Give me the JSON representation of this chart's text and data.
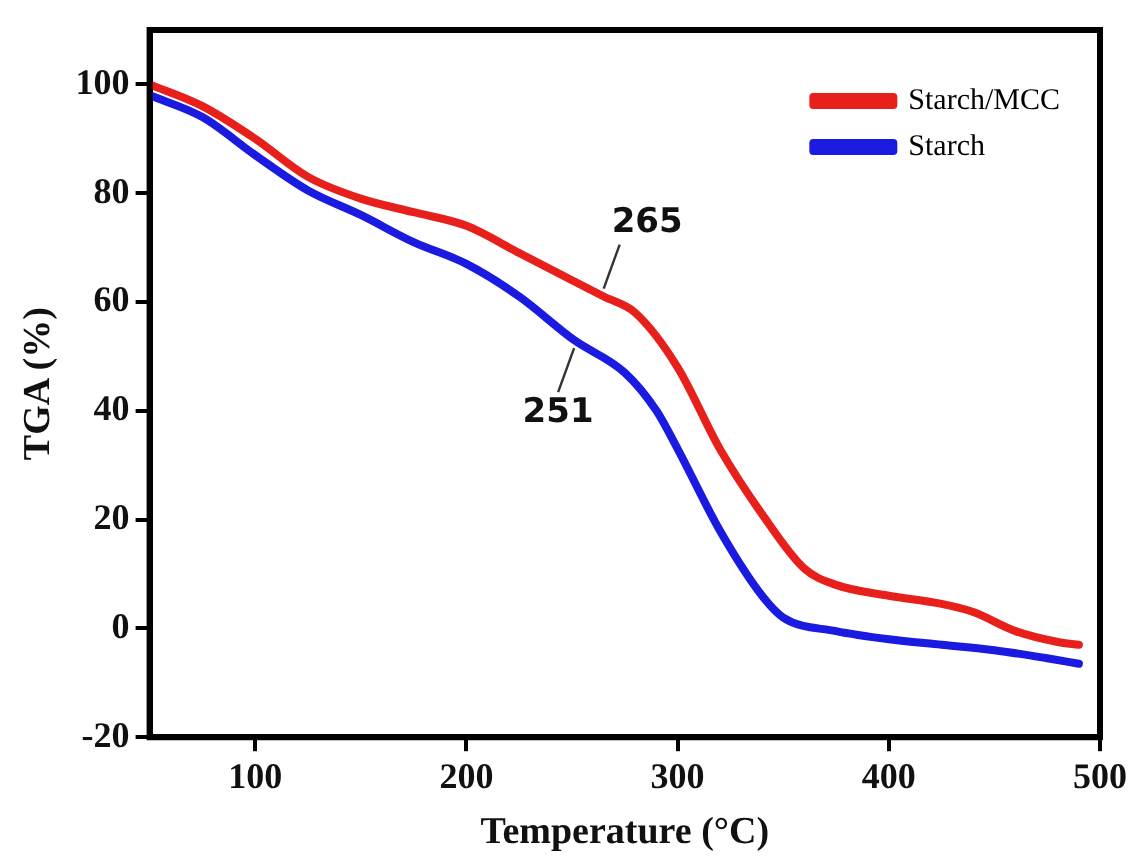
{
  "chart_data": {
    "type": "line",
    "xlabel": "Temperature (°C)",
    "ylabel": "TGA (%)",
    "xlim": [
      50,
      500
    ],
    "xticks": [
      100,
      200,
      300,
      400,
      500
    ],
    "ylim": [
      -20,
      110
    ],
    "yticks": [
      -20,
      0,
      20,
      40,
      60,
      80,
      100
    ],
    "grid": false,
    "legend": "top right",
    "marker": "none",
    "line_style": "solid",
    "annotations": [
      {
        "text": "265",
        "x": 265,
        "y": 61
      },
      {
        "text": "251",
        "x": 251,
        "y": 53
      }
    ],
    "series": [
      {
        "name": "Starch/MCC",
        "color": "#e8201c",
        "x": [
          50,
          75,
          100,
          125,
          150,
          175,
          200,
          225,
          250,
          265,
          280,
          300,
          320,
          340,
          360,
          375,
          400,
          425,
          440,
          460,
          480,
          490
        ],
        "values": [
          100,
          96,
          90,
          83,
          79,
          76.5,
          74,
          69,
          64,
          61,
          58,
          48,
          33,
          21,
          11,
          8,
          6,
          4.5,
          3,
          -0.5,
          -2.5,
          -3
        ]
      },
      {
        "name": "Starch",
        "color": "#1a1ae0",
        "x": [
          50,
          75,
          100,
          125,
          150,
          175,
          200,
          225,
          251,
          275,
          290,
          300,
          320,
          340,
          350,
          375,
          400,
          425,
          450,
          475,
          490
        ],
        "values": [
          98,
          94,
          87,
          80.5,
          76,
          71,
          67,
          61,
          53,
          47,
          40,
          33,
          18,
          6,
          2,
          -0.5,
          -2,
          -3,
          -4,
          -5.5,
          -6.5
        ]
      }
    ]
  }
}
